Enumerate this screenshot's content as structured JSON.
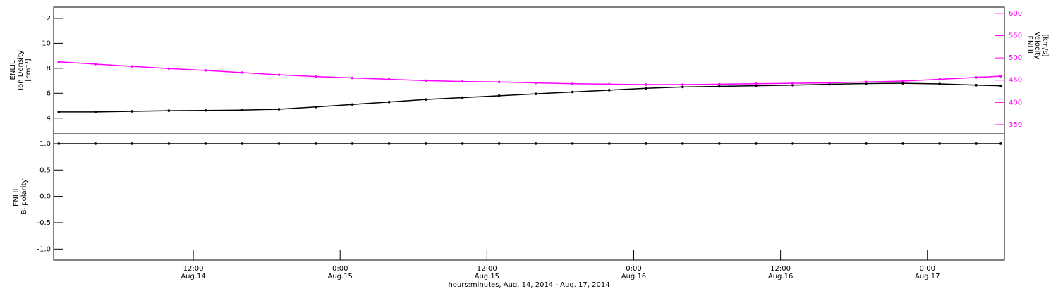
{
  "chart_data": [
    {
      "type": "line",
      "y_label": [
        "ENLIL",
        "Ion Density",
        "[cm⁻³]"
      ],
      "y2_label": [
        "ENLIL",
        "Velocity",
        "[km/s]"
      ],
      "x": [
        1,
        4,
        7,
        10,
        13,
        16,
        19,
        22,
        25,
        28,
        31,
        34,
        37,
        40,
        43,
        46,
        49,
        52,
        55,
        58,
        61,
        64,
        67,
        70,
        73,
        76,
        78
      ],
      "xlim": [
        0.58,
        78.3
      ],
      "ylim": [
        2.8,
        12.9
      ],
      "yticks": [
        4,
        6,
        8,
        10,
        12
      ],
      "y2lim": [
        331,
        614
      ],
      "y2ticks": [
        350,
        400,
        450,
        500,
        550,
        600
      ],
      "y2color": "#ff00ff",
      "series": [
        {
          "color": "#000000",
          "values": [
            4.5,
            4.5,
            4.55,
            4.6,
            4.62,
            4.65,
            4.72,
            4.9,
            5.1,
            5.3,
            5.5,
            5.65,
            5.8,
            5.95,
            6.1,
            6.25,
            6.4,
            6.5,
            6.55,
            6.6,
            6.65,
            6.72,
            6.78,
            6.8,
            6.75,
            6.65,
            6.6
          ]
        },
        {
          "color": "#ff00ff",
          "axis": "y2",
          "values": [
            491,
            486,
            481,
            476,
            472,
            467,
            462,
            458,
            455,
            452,
            449,
            447,
            446,
            444,
            442,
            441,
            440,
            440,
            441,
            442,
            443,
            444,
            446,
            448,
            452,
            456,
            459
          ]
        }
      ]
    },
    {
      "type": "line",
      "y_label": [
        "ENLIL",
        "Bᵣ polarity"
      ],
      "x": [
        1,
        4,
        7,
        10,
        13,
        16,
        19,
        22,
        25,
        28,
        31,
        34,
        37,
        40,
        43,
        46,
        49,
        52,
        55,
        58,
        61,
        64,
        67,
        70,
        73,
        76,
        78
      ],
      "xlim": [
        0.58,
        78.3
      ],
      "ylim": [
        -1.21,
        1.2
      ],
      "yticks": [
        {
          "value": -1,
          "label": "-1.0"
        },
        {
          "value": -0.5,
          "label": "-0.5"
        },
        {
          "value": 0,
          "label": "0.0"
        },
        {
          "value": 0.5,
          "label": "0.5"
        },
        {
          "value": 1,
          "label": "1.0"
        }
      ],
      "xticks": [
        {
          "value": 12,
          "label": "12:00 Aug.14"
        },
        {
          "value": 24,
          "label": "0:00 Aug.15"
        },
        {
          "value": 36,
          "label": "12:00 Aug.15"
        },
        {
          "value": 48,
          "label": "0:00 Aug.16"
        },
        {
          "value": 60,
          "label": "12:00 Aug.16"
        },
        {
          "value": 72,
          "label": "0:00 Aug.17"
        }
      ],
      "x_label": "hours:minutes, Aug. 14, 2014 - Aug. 17, 2014",
      "series": [
        {
          "color": "#000000",
          "values": [
            1,
            1,
            1,
            1,
            1,
            1,
            1,
            1,
            1,
            1,
            1,
            1,
            1,
            1,
            1,
            1,
            1,
            1,
            1,
            1,
            1,
            1,
            1,
            1,
            1,
            1,
            1
          ]
        }
      ]
    }
  ]
}
